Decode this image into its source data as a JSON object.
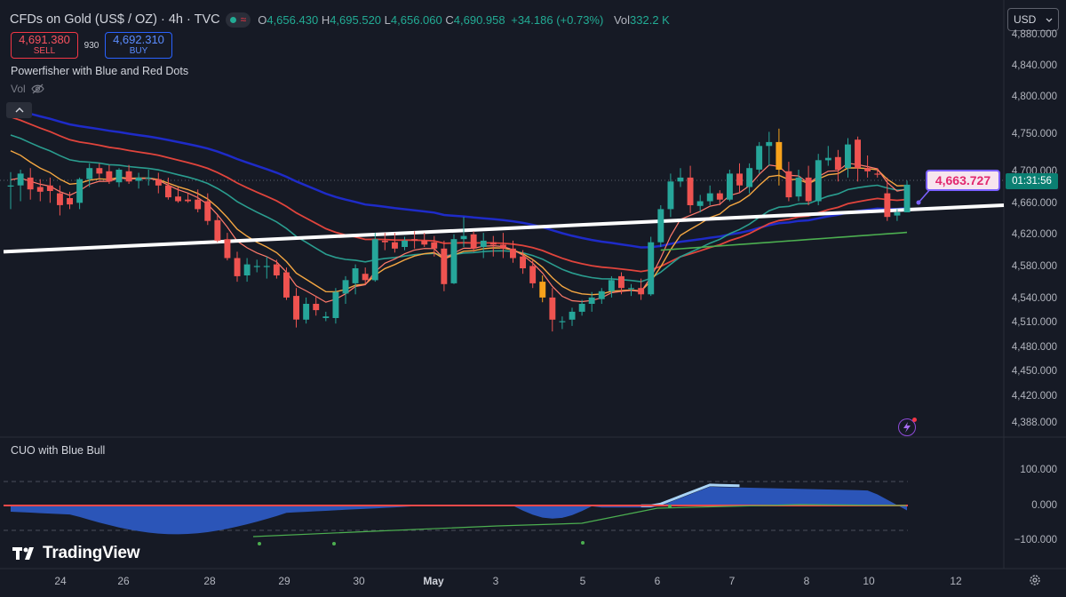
{
  "header": {
    "title": "CFDs on Gold (US$ / OZ) · 4h · TVC",
    "ohlc": {
      "o_label": "O",
      "o": "4,656.430",
      "h_label": "H",
      "h": "4,695.520",
      "l_label": "L",
      "l": "4,656.060",
      "c_label": "C",
      "c": "4,690.958",
      "change": "+34.186 (+0.73%)",
      "vol_label": "Vol",
      "vol": "332.2 K"
    },
    "status_icons": [
      "market-open-dot-icon",
      "data-wave-icon"
    ]
  },
  "trade": {
    "sell_price": "4,691.380",
    "sell_label": "SELL",
    "spread": "930",
    "buy_price": "4,692.310",
    "buy_label": "BUY"
  },
  "indicators": {
    "main": "Powerfisher with Blue and Red Dots",
    "volume": "Vol",
    "oscillator": "CUO with Blue Bull"
  },
  "currency": "USD",
  "price_axis": [
    "4,880.000",
    "4,840.000",
    "4,800.000",
    "4,750.000",
    "4,700.000",
    "4,660.000",
    "4,620.000",
    "4,580.000",
    "4,540.000",
    "4,510.000",
    "4,480.000",
    "4,450.000",
    "4,420.000",
    "4,388.000"
  ],
  "oscillator_axis": [
    "100.000",
    "0.000",
    "−100.000"
  ],
  "last_price_countdown": "01:31:56",
  "callout_price": "4,663.727",
  "time_axis": [
    {
      "label": "24",
      "bold": false
    },
    {
      "label": "26",
      "bold": false
    },
    {
      "label": "28",
      "bold": false
    },
    {
      "label": "29",
      "bold": false
    },
    {
      "label": "30",
      "bold": false
    },
    {
      "label": "May",
      "bold": true
    },
    {
      "label": "3",
      "bold": false
    },
    {
      "label": "5",
      "bold": false
    },
    {
      "label": "6",
      "bold": false
    },
    {
      "label": "7",
      "bold": false
    },
    {
      "label": "8",
      "bold": false
    },
    {
      "label": "10",
      "bold": false
    },
    {
      "label": "12",
      "bold": false
    }
  ],
  "branding": "TradingView",
  "colors": {
    "background": "#161a25",
    "up": "#26a69a",
    "down": "#ef5350",
    "highlight": "#f7a21b",
    "trendline": "#ffffff",
    "ma_blue": "#1e2bc8",
    "ma_red": "#e0443c",
    "ma_teal": "#2a9d8f",
    "ma_orange": "#f5a742",
    "ma_green": "#4caf50",
    "oscillator_fill": "#2b55b8",
    "oscillator_light": "#a9d3f5"
  },
  "chart_data": {
    "type": "candlestick",
    "interval": "4h",
    "ylim": [
      4388,
      4880
    ],
    "oscillator_ylim": [
      -100,
      100
    ],
    "candles": [
      {
        "o": 4690,
        "h": 4707,
        "l": 4660,
        "c": 4690
      },
      {
        "o": 4690,
        "h": 4710,
        "l": 4670,
        "c": 4705
      },
      {
        "o": 4700,
        "h": 4712,
        "l": 4672,
        "c": 4685
      },
      {
        "o": 4688,
        "h": 4698,
        "l": 4670,
        "c": 4682
      },
      {
        "o": 4690,
        "h": 4700,
        "l": 4668,
        "c": 4683
      },
      {
        "o": 4680,
        "h": 4690,
        "l": 4652,
        "c": 4665
      },
      {
        "o": 4674,
        "h": 4682,
        "l": 4660,
        "c": 4666
      },
      {
        "o": 4668,
        "h": 4700,
        "l": 4660,
        "c": 4698
      },
      {
        "o": 4698,
        "h": 4718,
        "l": 4688,
        "c": 4712
      },
      {
        "o": 4712,
        "h": 4718,
        "l": 4698,
        "c": 4705
      },
      {
        "o": 4708,
        "h": 4716,
        "l": 4692,
        "c": 4695
      },
      {
        "o": 4694,
        "h": 4712,
        "l": 4688,
        "c": 4710
      },
      {
        "o": 4708,
        "h": 4716,
        "l": 4692,
        "c": 4695
      },
      {
        "o": 4696,
        "h": 4706,
        "l": 4686,
        "c": 4700
      },
      {
        "o": 4700,
        "h": 4710,
        "l": 4690,
        "c": 4700
      },
      {
        "o": 4698,
        "h": 4706,
        "l": 4680,
        "c": 4690
      },
      {
        "o": 4690,
        "h": 4700,
        "l": 4672,
        "c": 4675
      },
      {
        "o": 4676,
        "h": 4688,
        "l": 4668,
        "c": 4670
      },
      {
        "o": 4672,
        "h": 4680,
        "l": 4668,
        "c": 4670
      },
      {
        "o": 4672,
        "h": 4685,
        "l": 4656,
        "c": 4660
      },
      {
        "o": 4670,
        "h": 4680,
        "l": 4640,
        "c": 4645
      },
      {
        "o": 4646,
        "h": 4652,
        "l": 4618,
        "c": 4620
      },
      {
        "o": 4622,
        "h": 4630,
        "l": 4595,
        "c": 4598
      },
      {
        "o": 4598,
        "h": 4606,
        "l": 4568,
        "c": 4575
      },
      {
        "o": 4576,
        "h": 4598,
        "l": 4568,
        "c": 4590
      },
      {
        "o": 4588,
        "h": 4596,
        "l": 4580,
        "c": 4588
      },
      {
        "o": 4588,
        "h": 4600,
        "l": 4572,
        "c": 4588
      },
      {
        "o": 4590,
        "h": 4596,
        "l": 4572,
        "c": 4576
      },
      {
        "o": 4580,
        "h": 4586,
        "l": 4545,
        "c": 4548
      },
      {
        "o": 4550,
        "h": 4560,
        "l": 4510,
        "c": 4520
      },
      {
        "o": 4520,
        "h": 4548,
        "l": 4515,
        "c": 4540
      },
      {
        "o": 4540,
        "h": 4550,
        "l": 4525,
        "c": 4532
      },
      {
        "o": 4522,
        "h": 4530,
        "l": 4518,
        "c": 4524
      },
      {
        "o": 4522,
        "h": 4560,
        "l": 4515,
        "c": 4555
      },
      {
        "o": 4553,
        "h": 4575,
        "l": 4540,
        "c": 4570
      },
      {
        "o": 4566,
        "h": 4590,
        "l": 4552,
        "c": 4585
      },
      {
        "o": 4578,
        "h": 4586,
        "l": 4565,
        "c": 4570
      },
      {
        "o": 4570,
        "h": 4630,
        "l": 4568,
        "c": 4622
      },
      {
        "o": 4620,
        "h": 4630,
        "l": 4608,
        "c": 4618
      },
      {
        "o": 4618,
        "h": 4630,
        "l": 4605,
        "c": 4610
      },
      {
        "o": 4612,
        "h": 4625,
        "l": 4608,
        "c": 4620
      },
      {
        "o": 4622,
        "h": 4632,
        "l": 4610,
        "c": 4620
      },
      {
        "o": 4620,
        "h": 4630,
        "l": 4612,
        "c": 4615
      },
      {
        "o": 4618,
        "h": 4626,
        "l": 4600,
        "c": 4610
      },
      {
        "o": 4610,
        "h": 4620,
        "l": 4556,
        "c": 4565
      },
      {
        "o": 4566,
        "h": 4628,
        "l": 4565,
        "c": 4622
      },
      {
        "o": 4622,
        "h": 4650,
        "l": 4612,
        "c": 4626
      },
      {
        "o": 4628,
        "h": 4632,
        "l": 4606,
        "c": 4610
      },
      {
        "o": 4612,
        "h": 4630,
        "l": 4598,
        "c": 4620
      },
      {
        "o": 4618,
        "h": 4626,
        "l": 4600,
        "c": 4615
      },
      {
        "o": 4615,
        "h": 4630,
        "l": 4598,
        "c": 4610
      },
      {
        "o": 4610,
        "h": 4620,
        "l": 4592,
        "c": 4598
      },
      {
        "o": 4600,
        "h": 4608,
        "l": 4578,
        "c": 4585
      },
      {
        "o": 4588,
        "h": 4596,
        "l": 4560,
        "c": 4566
      },
      {
        "o": 4568,
        "h": 4576,
        "l": 4542,
        "c": 4548,
        "highlight": true
      },
      {
        "o": 4548,
        "h": 4560,
        "l": 4505,
        "c": 4520
      },
      {
        "o": 4518,
        "h": 4524,
        "l": 4508,
        "c": 4518
      },
      {
        "o": 4520,
        "h": 4535,
        "l": 4512,
        "c": 4530
      },
      {
        "o": 4530,
        "h": 4545,
        "l": 4525,
        "c": 4540
      },
      {
        "o": 4540,
        "h": 4555,
        "l": 4530,
        "c": 4548
      },
      {
        "o": 4546,
        "h": 4560,
        "l": 4540,
        "c": 4556
      },
      {
        "o": 4556,
        "h": 4575,
        "l": 4548,
        "c": 4570
      },
      {
        "o": 4575,
        "h": 4580,
        "l": 4552,
        "c": 4560
      },
      {
        "o": 4560,
        "h": 4565,
        "l": 4550,
        "c": 4560
      },
      {
        "o": 4560,
        "h": 4572,
        "l": 4545,
        "c": 4552
      },
      {
        "o": 4552,
        "h": 4625,
        "l": 4550,
        "c": 4618
      },
      {
        "o": 4618,
        "h": 4665,
        "l": 4612,
        "c": 4660
      },
      {
        "o": 4660,
        "h": 4705,
        "l": 4650,
        "c": 4695
      },
      {
        "o": 4695,
        "h": 4712,
        "l": 4688,
        "c": 4700
      },
      {
        "o": 4700,
        "h": 4715,
        "l": 4655,
        "c": 4665
      },
      {
        "o": 4664,
        "h": 4678,
        "l": 4656,
        "c": 4670
      },
      {
        "o": 4670,
        "h": 4690,
        "l": 4665,
        "c": 4680
      },
      {
        "o": 4680,
        "h": 4684,
        "l": 4665,
        "c": 4672
      },
      {
        "o": 4672,
        "h": 4710,
        "l": 4670,
        "c": 4705
      },
      {
        "o": 4705,
        "h": 4718,
        "l": 4680,
        "c": 4690
      },
      {
        "o": 4688,
        "h": 4718,
        "l": 4680,
        "c": 4712
      },
      {
        "o": 4710,
        "h": 4745,
        "l": 4705,
        "c": 4740
      },
      {
        "o": 4740,
        "h": 4758,
        "l": 4715,
        "c": 4745
      },
      {
        "o": 4745,
        "h": 4762,
        "l": 4690,
        "c": 4710,
        "highlight": true
      },
      {
        "o": 4708,
        "h": 4720,
        "l": 4670,
        "c": 4675
      },
      {
        "o": 4676,
        "h": 4710,
        "l": 4670,
        "c": 4700
      },
      {
        "o": 4700,
        "h": 4715,
        "l": 4665,
        "c": 4670
      },
      {
        "o": 4670,
        "h": 4730,
        "l": 4665,
        "c": 4722
      },
      {
        "o": 4722,
        "h": 4740,
        "l": 4715,
        "c": 4725
      },
      {
        "o": 4726,
        "h": 4735,
        "l": 4695,
        "c": 4710
      },
      {
        "o": 4712,
        "h": 4750,
        "l": 4700,
        "c": 4742
      },
      {
        "o": 4748,
        "h": 4752,
        "l": 4695,
        "c": 4712
      },
      {
        "o": 4712,
        "h": 4728,
        "l": 4700,
        "c": 4708
      },
      {
        "o": 4705,
        "h": 4712,
        "l": 4700,
        "c": 4704
      },
      {
        "o": 4680,
        "h": 4700,
        "l": 4645,
        "c": 4650
      },
      {
        "o": 4652,
        "h": 4660,
        "l": 4645,
        "c": 4656
      },
      {
        "o": 4656,
        "h": 4696,
        "l": 4656,
        "c": 4691
      }
    ],
    "trendline": {
      "from": 4606,
      "to": 4665
    },
    "oscillator": {
      "levels": [
        70,
        0,
        -70
      ],
      "main_series_start": -12,
      "main_series_end": -12,
      "markers": 4
    }
  }
}
